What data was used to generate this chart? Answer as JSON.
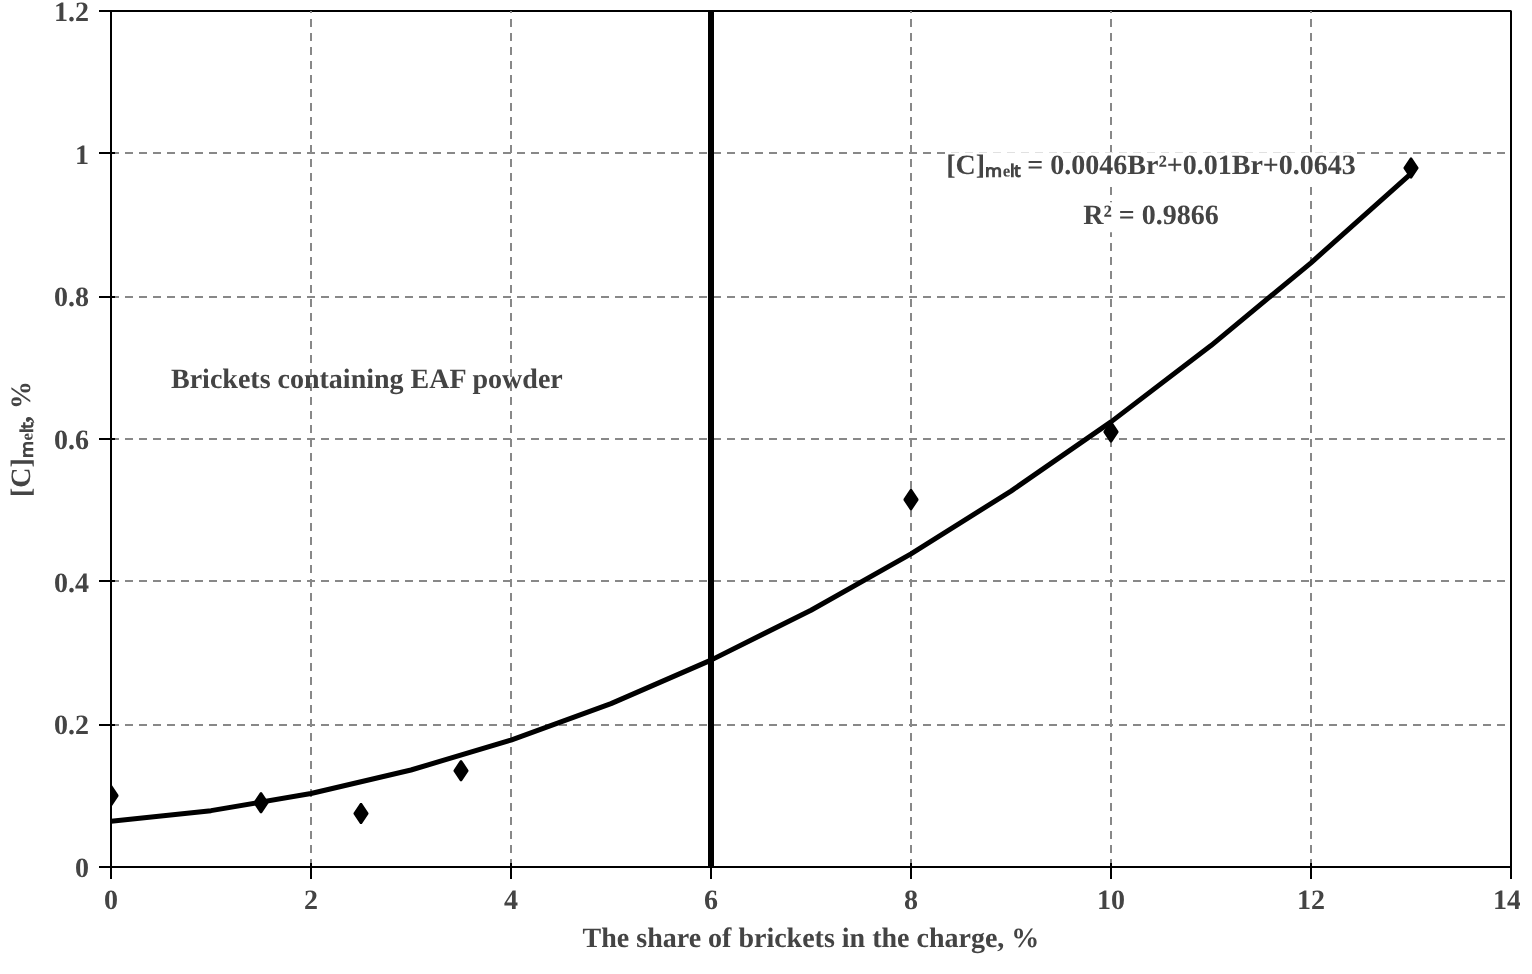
{
  "chart_data": {
    "type": "scatter",
    "xlabel": "The share of brickets in the charge, %",
    "ylabel": "[C]ₘₑₗₜ, %",
    "xlim": [
      0,
      14
    ],
    "ylim": [
      0,
      1.2
    ],
    "xticks": [
      0,
      2,
      4,
      6,
      8,
      10,
      12,
      14
    ],
    "yticks": [
      0,
      0.2,
      0.4,
      0.6,
      0.8,
      1,
      1.2
    ],
    "grid": true,
    "marker": "diamond",
    "series": [
      {
        "color": "#000000",
        "x": [
          0,
          1.5,
          2.5,
          3.5,
          8,
          10,
          13
        ],
        "values": [
          0.1,
          0.09,
          0.075,
          0.135,
          0.515,
          0.61,
          0.98
        ]
      },
      {
        "type": "line",
        "marker": "none",
        "color": "#000000",
        "x": [
          0,
          1,
          2,
          3,
          4,
          5,
          6,
          7,
          8,
          9,
          10,
          11,
          12,
          13
        ],
        "values": [
          0.064,
          0.079,
          0.103,
          0.136,
          0.178,
          0.229,
          0.29,
          0.36,
          0.439,
          0.527,
          0.624,
          0.731,
          0.847,
          0.972
        ]
      }
    ],
    "ref_lines": [
      {
        "axis": "x",
        "value": 6,
        "color": "#000000"
      }
    ],
    "annotations": [
      "Brickets containing EAF powder",
      "[C]ₘₑₗₜ = 0.0046Br²+0.01Br+0.0643",
      "R² = 0.9866"
    ]
  }
}
